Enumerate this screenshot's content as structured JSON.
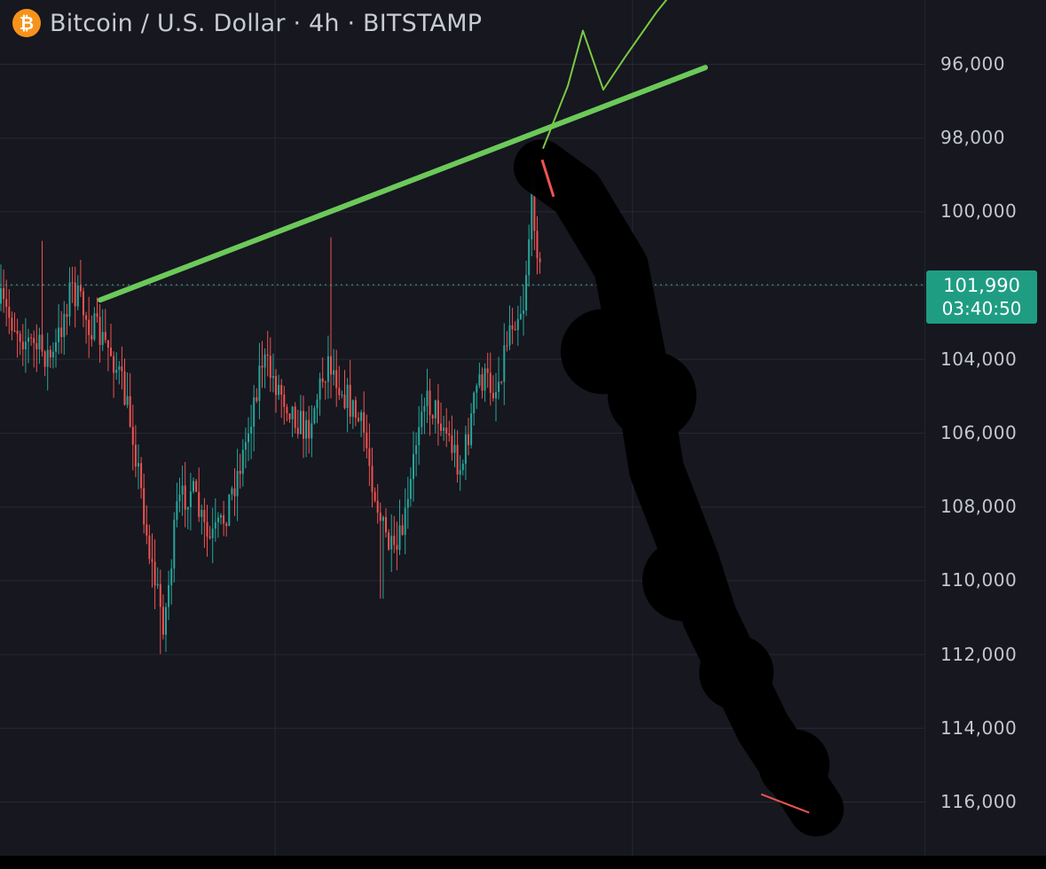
{
  "header": {
    "logo_glyph": "₿",
    "title": "Bitcoin / U.S. Dollar · 4h · BITSTAMP"
  },
  "price_tag": {
    "price": "101,990",
    "countdown": "03:40:50"
  },
  "colors": {
    "background": "#16171f",
    "grid": "#262833",
    "up_candle": "#26a69a",
    "down_candle": "#ef5350",
    "trendline": "#6cc95a",
    "projection": "#7ac943",
    "price_line": "#2fa38c",
    "scribble": "#000000"
  },
  "chart_data": {
    "type": "candlestick",
    "title": "Bitcoin / U.S. Dollar · 4h · BITSTAMP",
    "y_axis": {
      "inverted": true,
      "range": [
        94000,
        117000
      ],
      "ticks": [
        "96,000",
        "98,000",
        "100,000",
        "102,000",
        "104,000",
        "106,000",
        "108,000",
        "110,000",
        "112,000",
        "114,000",
        "116,000"
      ],
      "tick_values": [
        96000,
        98000,
        100000,
        102000,
        104000,
        106000,
        108000,
        110000,
        112000,
        114000,
        116000
      ]
    },
    "current_price": 101990,
    "anchor_prices": [
      [
        0,
        102500
      ],
      [
        30,
        103500
      ],
      [
        60,
        104000
      ],
      [
        80,
        102000
      ],
      [
        100,
        103000
      ],
      [
        125,
        103800
      ],
      [
        135,
        104500
      ],
      [
        150,
        106000
      ],
      [
        170,
        109500
      ],
      [
        185,
        111200
      ],
      [
        200,
        108000
      ],
      [
        215,
        107500
      ],
      [
        235,
        109000
      ],
      [
        250,
        108500
      ],
      [
        275,
        106500
      ],
      [
        295,
        104000
      ],
      [
        320,
        105000
      ],
      [
        345,
        106000
      ],
      [
        370,
        104000
      ],
      [
        390,
        105000
      ],
      [
        410,
        106000
      ],
      [
        430,
        108500
      ],
      [
        445,
        109500
      ],
      [
        460,
        108000
      ],
      [
        475,
        105000
      ],
      [
        495,
        105500
      ],
      [
        520,
        107000
      ],
      [
        540,
        104500
      ],
      [
        560,
        104800
      ],
      [
        575,
        103000
      ],
      [
        590,
        102500
      ],
      [
        600,
        99500
      ],
      [
        610,
        102000
      ]
    ],
    "spikes": [
      [
        48,
        100800
      ],
      [
        83,
        101500
      ],
      [
        373,
        100700
      ],
      [
        600,
        98700
      ],
      [
        180,
        112000
      ],
      [
        430,
        110500
      ]
    ],
    "annotations": {
      "trendline": {
        "from": [
          113,
          102400
        ],
        "to": [
          795,
          96100
        ]
      },
      "bull_projection": [
        [
          612,
          98300
        ],
        [
          640,
          96600
        ],
        [
          657,
          95100
        ],
        [
          680,
          96700
        ],
        [
          705,
          95800
        ],
        [
          740,
          94600
        ],
        [
          760,
          94000
        ]
      ],
      "bear_scribble": [
        [
          610,
          98800
        ],
        [
          650,
          99500
        ],
        [
          700,
          101500
        ],
        [
          720,
          104000
        ],
        [
          740,
          107000
        ],
        [
          780,
          109500
        ],
        [
          800,
          111000
        ],
        [
          860,
          114000
        ],
        [
          920,
          116200
        ]
      ]
    }
  }
}
